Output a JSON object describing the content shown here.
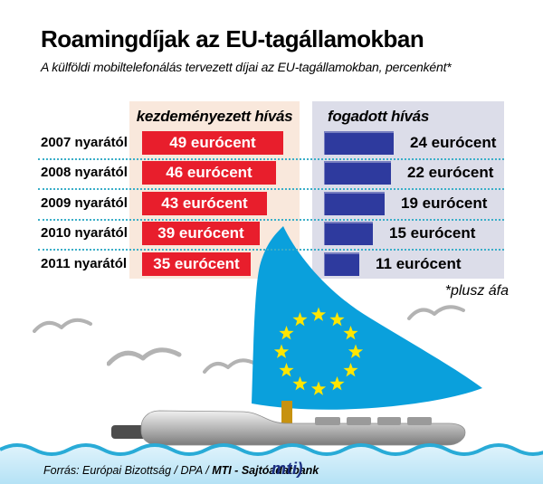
{
  "header": {
    "title": "Roamingdíjak az EU-tagállamokban",
    "subtitle": "A külföldi mobiltelefonálás tervezett díjai az EU-tagállamokban, percenként*"
  },
  "table": {
    "col_initiated": "kezdeményezett hívás",
    "col_received": "fogadott hívás",
    "unit": "eurócent",
    "rows": [
      {
        "label": "2007 nyarától",
        "initiated": 49,
        "received": 24
      },
      {
        "label": "2008 nyarától",
        "initiated": 46,
        "received": 22
      },
      {
        "label": "2009 nyarától",
        "initiated": 43,
        "received": 19
      },
      {
        "label": "2010 nyarától",
        "initiated": 39,
        "received": 15
      },
      {
        "label": "2011 nyarától",
        "initiated": 35,
        "received": 11
      }
    ],
    "footnote": "*plusz áfa"
  },
  "chart_data": {
    "type": "bar",
    "orientation": "horizontal",
    "title": "Roamingdíjak az EU-tagállamokban",
    "subtitle": "A külföldi mobiltelefonálás tervezett díjai az EU-tagállamokban, percenként*",
    "categories": [
      "2007 nyarától",
      "2008 nyarától",
      "2009 nyarától",
      "2010 nyarától",
      "2011 nyarától"
    ],
    "series": [
      {
        "name": "kezdeményezett hívás",
        "values": [
          49,
          46,
          43,
          39,
          35
        ],
        "color": "#e81e2c",
        "label_style": "inside-white"
      },
      {
        "name": "fogadott hívás",
        "values": [
          24,
          22,
          19,
          15,
          11
        ],
        "color": "#2e3a9e",
        "label_style": "outside-black"
      }
    ],
    "unit": "eurócent",
    "note": "*plusz áfa",
    "legend_position": "column-headers",
    "grid": "dotted-row-separators"
  },
  "footer": {
    "source_italic": "Forrás: Európai Bizottság / DPA / ",
    "source_bold": "MTI - Sajtóadatbank",
    "logo_text": "mti)"
  },
  "colors": {
    "bar_initiated": "#e81e2c",
    "bar_received": "#2e3a9e",
    "col_bg_initiated": "#f9e8dc",
    "col_bg_received": "#dcdde9",
    "dotted_line": "#3aaec8",
    "sail": "#0aa0dc",
    "stars": "#ffe600",
    "mast": "#c79210",
    "hull_gray": "#9a9a9a",
    "water_line": "#29abd7",
    "water_fill": "#cdecfa",
    "logo_navy": "#1b2f82"
  }
}
